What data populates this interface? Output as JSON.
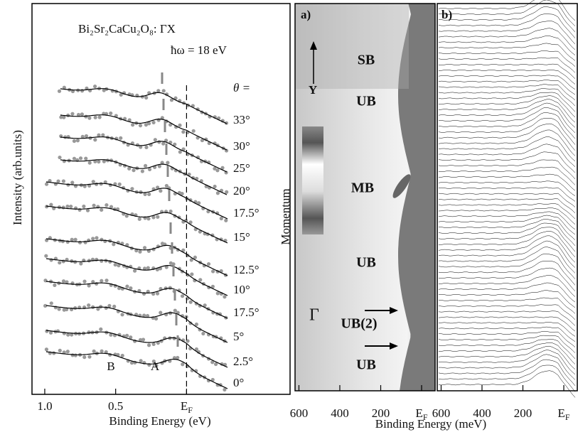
{
  "left_panel": {
    "title": "Bi₂Sr₂CaCu₂O₈: ΓX",
    "photon_energy": "ħω = 18 eV",
    "theta_label": "θ =",
    "angles": [
      "33°",
      "30°",
      "25°",
      "20°",
      "17.5°",
      "15°",
      "12.5°",
      "10°",
      "17.5°",
      "5°",
      "2.5°",
      "0°"
    ],
    "peak_labels": [
      "B",
      "A"
    ],
    "x_axis_label": "Binding Energy (eV)",
    "y_axis_label": "Intensity (arb.units)",
    "xlim": [
      1.09,
      -0.73
    ],
    "xticks": [
      {
        "value": 1,
        "label": "1.0"
      },
      0.5,
      {
        "value": 0,
        "label": "EF"
      }
    ]
  },
  "panel_a": {
    "label": "a)",
    "regions": [
      "SB",
      "UB",
      "MB",
      "UB",
      "UB(2)",
      "UB"
    ],
    "gamma": "Γ",
    "y_arrow": "Y",
    "y_axis_label": "Momentum",
    "xlim": [
      619,
      -66
    ],
    "xticks": [
      600,
      400,
      200,
      {
        "value": 0,
        "label": "EF"
      }
    ]
  },
  "panel_b": {
    "label": "b)",
    "xlim": [
      619,
      -66
    ],
    "xticks": [
      600,
      400,
      200,
      {
        "value": 0,
        "label": "EF"
      }
    ]
  },
  "x_axis_label": "Binding Energy (meV)"
}
